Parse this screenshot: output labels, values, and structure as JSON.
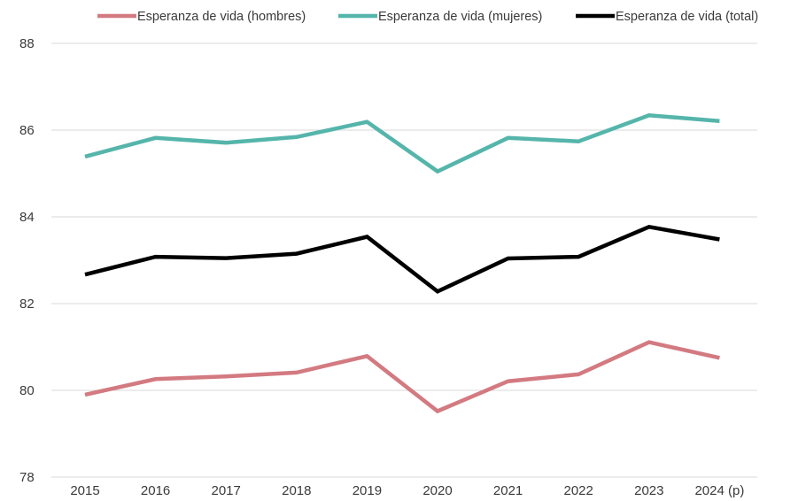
{
  "chart_data": {
    "type": "line",
    "categories": [
      "2015",
      "2016",
      "2017",
      "2018",
      "2019",
      "2020",
      "2021",
      "2022",
      "2023",
      "2024 (p)"
    ],
    "ylim": [
      78,
      88
    ],
    "yticks": [
      78,
      80,
      82,
      84,
      86,
      88
    ],
    "grid": true,
    "legend_position": "top",
    "series": [
      {
        "name": "Esperanza de vida (hombres)",
        "color": "#d37a81",
        "values": [
          79.9,
          80.26,
          80.32,
          80.41,
          80.79,
          79.52,
          80.21,
          80.37,
          81.11,
          80.75
        ]
      },
      {
        "name": "Esperanza de vida (mujeres)",
        "color": "#55b5ab",
        "values": [
          85.39,
          85.82,
          85.71,
          85.84,
          86.19,
          85.05,
          85.82,
          85.74,
          86.34,
          86.21
        ]
      },
      {
        "name": "Esperanza de vida (total)",
        "color": "#000000",
        "values": [
          82.67,
          83.08,
          83.05,
          83.15,
          83.54,
          82.28,
          83.04,
          83.08,
          83.77,
          83.48
        ]
      }
    ]
  }
}
